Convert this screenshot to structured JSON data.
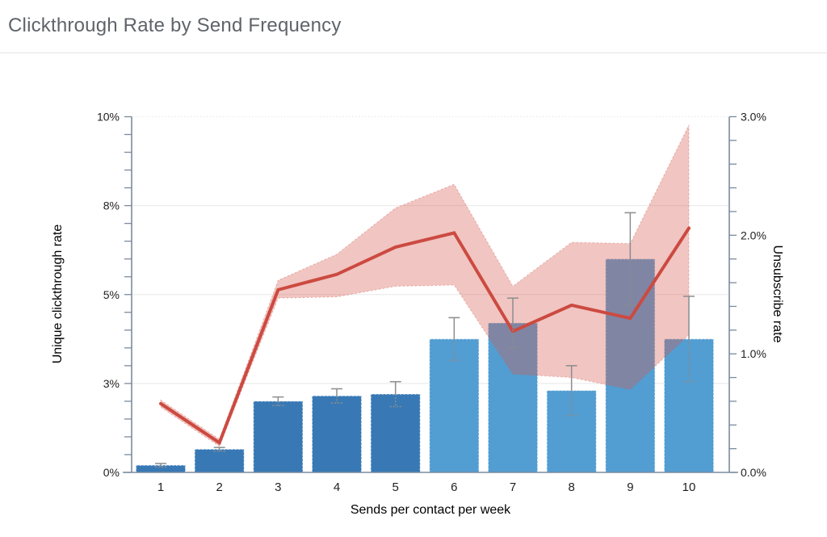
{
  "page": {
    "title": "Clickthrough Rate by Send Frequency"
  },
  "chart_data": {
    "type": "bar",
    "subtype": "dual-axis bar + line with confidence band and error bars",
    "title": "Clickthrough Rate by Send Frequency",
    "xlabel": "Sends per contact per week",
    "ylabel_left": "Unique clickthrough rate",
    "ylabel_right": "Unsubscribe rate",
    "categories": [
      "1",
      "2",
      "3",
      "4",
      "5",
      "6",
      "7",
      "8",
      "9",
      "10"
    ],
    "bar_series": {
      "name": "Unique clickthrough rate (%, left axis)",
      "values": [
        0.2,
        0.65,
        2.0,
        2.15,
        2.2,
        3.75,
        4.2,
        2.3,
        6.0,
        3.75
      ],
      "errors": [
        0.05,
        0.05,
        0.12,
        0.2,
        0.35,
        0.6,
        0.7,
        0.7,
        1.3,
        1.2
      ],
      "colors": [
        "#3879b5",
        "#3879b5",
        "#3879b5",
        "#3879b5",
        "#3879b5",
        "#529dd1",
        "#529dd1",
        "#529dd1",
        "#529dd1",
        "#529dd1"
      ],
      "error_color": "#8a8d90"
    },
    "line_series": {
      "name": "Unsubscribe rate (%, right axis)",
      "values": [
        0.58,
        0.25,
        1.54,
        1.67,
        1.9,
        2.02,
        1.19,
        1.41,
        1.3,
        2.06
      ],
      "band_upper": [
        0.61,
        0.28,
        1.62,
        1.84,
        2.23,
        2.43,
        1.57,
        1.94,
        1.93,
        2.93
      ],
      "band_lower": [
        0.55,
        0.22,
        1.47,
        1.48,
        1.57,
        1.58,
        0.83,
        0.8,
        0.7,
        1.16
      ],
      "color": "#cc4a41",
      "band_fill": "rgba(214,88,77,0.35)"
    },
    "axes": {
      "left": {
        "min": 0,
        "max": 10,
        "minor_step": 0.5,
        "major_ticks": [
          {
            "value": 0,
            "label": "0%"
          },
          {
            "value": 2.5,
            "label": "3%"
          },
          {
            "value": 5,
            "label": "5%"
          },
          {
            "value": 7.5,
            "label": "8%"
          },
          {
            "value": 10,
            "label": "10%"
          }
        ],
        "gridlines": [
          2.5,
          5,
          7.5,
          10
        ]
      },
      "right": {
        "min": 0,
        "max": 3,
        "minor_step": 0.2,
        "major_ticks": [
          {
            "value": 0,
            "label": "0.0%"
          },
          {
            "value": 1,
            "label": "1.0%"
          },
          {
            "value": 2,
            "label": "2.0%"
          },
          {
            "value": 3,
            "label": "3.0%"
          }
        ]
      }
    },
    "style": {
      "axis_color": "#7b8b9d",
      "grid_color": "#e8e8e8",
      "bar_border": "rgba(235,243,250,0.9)"
    },
    "legend": {
      "visible": false
    }
  }
}
